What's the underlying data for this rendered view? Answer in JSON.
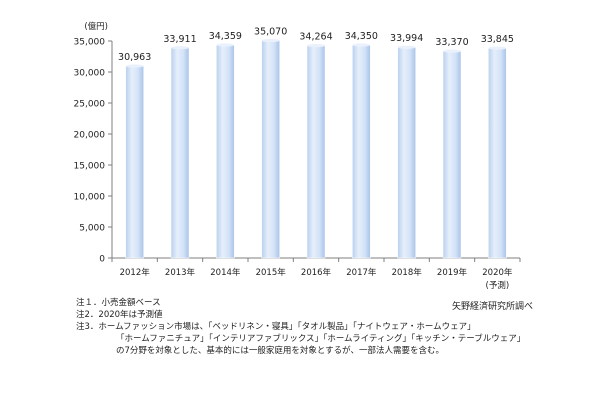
{
  "chart_data": {
    "type": "bar",
    "unit_label": "(億円)",
    "categories": [
      "2012年",
      "2013年",
      "2014年",
      "2015年",
      "2016年",
      "2017年",
      "2018年",
      "2019年",
      "2020年"
    ],
    "category_sublabels": [
      "",
      "",
      "",
      "",
      "",
      "",
      "",
      "",
      "(予測)"
    ],
    "values": [
      30963,
      33911,
      34359,
      35070,
      34264,
      34350,
      33994,
      33370,
      33845
    ],
    "value_labels": [
      "30,963",
      "33,911",
      "34,359",
      "35,070",
      "34,264",
      "34,350",
      "33,994",
      "33,370",
      "33,845"
    ],
    "ylim": [
      0,
      35000
    ],
    "yticks": [
      0,
      5000,
      10000,
      15000,
      20000,
      25000,
      30000,
      35000
    ],
    "ytick_labels": [
      "0",
      "5,000",
      "10,000",
      "15,000",
      "20,000",
      "25,000",
      "30,000",
      "35,000"
    ],
    "grid": false,
    "colors": {
      "bar": "#cfe0f7",
      "bar_edge": "#ffffff",
      "axis": "#7f7f7f"
    }
  },
  "notes": [
    "注１．小売金額ベース",
    "注2．2020年は予測値",
    "注3．ホームファッション市場は、「ベッドリネン・寝具」「タオル製品」「ナイトウェア・ホームウェア」",
    "「ホームファニチュア」「インテリアファブリックス」「ホームライティング」「キッチン・テーブルウェア」",
    "の7分野を対象とした、基本的には一般家庭用を対象とするが、一部法人需要を含む。"
  ],
  "source": "矢野経済研究所調べ"
}
